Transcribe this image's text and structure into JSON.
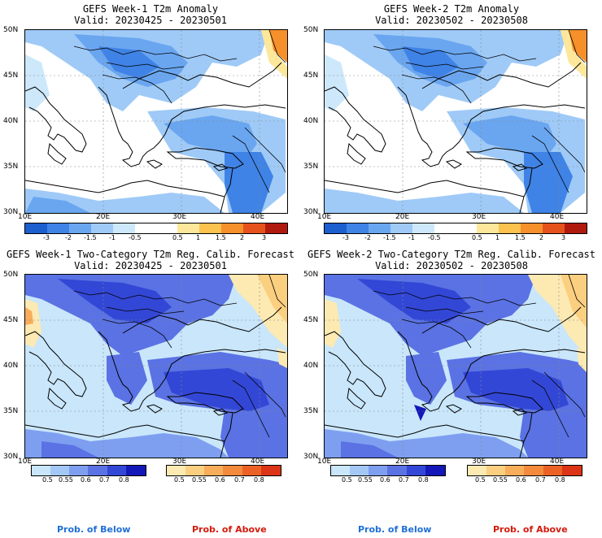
{
  "panels": [
    {
      "title": "GEFS Week-1 T2m Anomaly",
      "valid": "Valid: 20230425 - 20230501"
    },
    {
      "title": "GEFS Week-2 T2m Anomaly",
      "valid": "Valid: 20230502 - 20230508"
    },
    {
      "title": "GEFS Week-1 Two-Category T2m Reg. Calib. Forecast",
      "valid": "Valid: 20230425 - 20230501"
    },
    {
      "title": "GEFS Week-2 Two-Category T2m Reg. Calib. Forecast",
      "valid": "Valid: 20230502 - 20230508"
    }
  ],
  "lat_labels": [
    "50N",
    "45N",
    "40N",
    "35N",
    "30N"
  ],
  "lon_labels": [
    "10E",
    "20E",
    "30E",
    "40E"
  ],
  "anomaly_colorbar": {
    "ticks": [
      "-3",
      "-2",
      "-1.5",
      "-1",
      "-0.5",
      "0.5",
      "1",
      "1.5",
      "2",
      "3"
    ],
    "colors": [
      "#1c5fcf",
      "#3f83e6",
      "#6aa6f0",
      "#9fcaf7",
      "#cde8fb",
      "#ffffff",
      "#ffffff",
      "#fde79a",
      "#fbc24e",
      "#f6902b",
      "#e6521c",
      "#b01a0e"
    ]
  },
  "prob_colorbar_below": {
    "ticks": [
      "0.5",
      "0.55",
      "0.6",
      "0.7",
      "0.8"
    ],
    "colors": [
      "#c9e6fb",
      "#a3c8f6",
      "#7e9ff0",
      "#5a72e3",
      "#3347d6",
      "#1418b8"
    ]
  },
  "prob_colorbar_above": {
    "ticks": [
      "0.5",
      "0.55",
      "0.6",
      "0.7",
      "0.8"
    ],
    "colors": [
      "#fde9b2",
      "#fbcf80",
      "#f8ad5a",
      "#f38a3c",
      "#ec6226",
      "#dc3416"
    ]
  },
  "prob_labels": {
    "below": "Prob. of Below",
    "above": "Prob. of Above"
  },
  "colors": {
    "below_label": "#1f6fd6",
    "above_label": "#d41a0c"
  }
}
